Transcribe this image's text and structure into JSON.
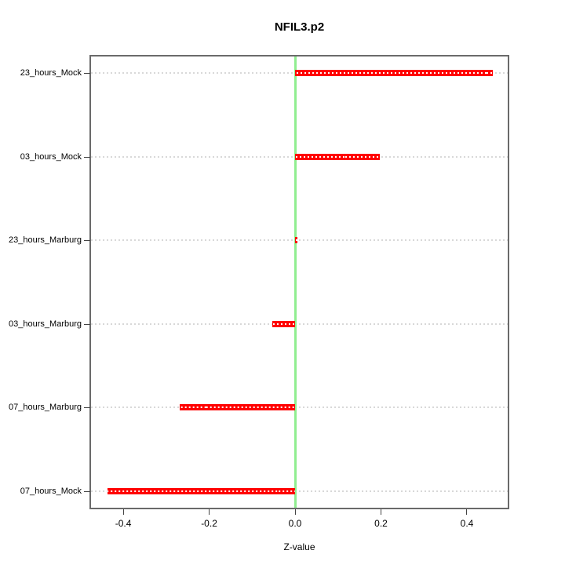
{
  "chart_data": {
    "type": "bar",
    "orientation": "horizontal",
    "title": "NFIL3.p2",
    "xlabel": "Z-value",
    "ylabel": "",
    "categories_top_to_bottom": [
      "23_hours_Mock",
      "03_hours_Mock",
      "23_hours_Marburg",
      "03_hours_Marburg",
      "07_hours_Marburg",
      "07_hours_Mock"
    ],
    "values": [
      0.46,
      0.198,
      0.005,
      -0.053,
      -0.268,
      -0.437
    ],
    "xlim": [
      -0.475,
      0.495
    ],
    "x_ticks": [
      -0.4,
      -0.2,
      0.0,
      0.2,
      0.4
    ],
    "x_tick_labels": [
      "-0.4",
      "-0.2",
      "0.0",
      "0.2",
      "0.4"
    ],
    "zero_line": 0.0,
    "grid": "dotted horizontal line per category, full plot width",
    "legend": "none",
    "colors": {
      "bar": "#ff0000",
      "bar_dot": "#ffffff",
      "zero_line": "#90ee90",
      "grid": "#d8d8d8",
      "box": "#6a6a6a",
      "axis": "#444444",
      "text": "#000000",
      "background": "#ffffff"
    }
  }
}
